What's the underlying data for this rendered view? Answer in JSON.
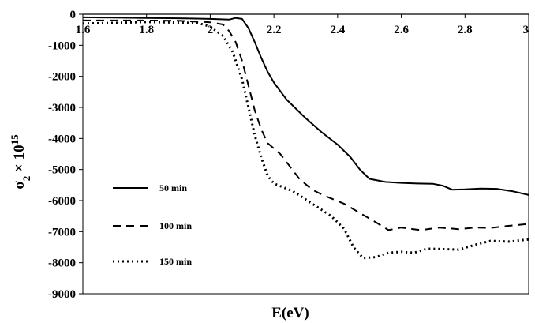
{
  "chart_data": {
    "type": "line",
    "xlabel": "E(eV)",
    "ylabel": {
      "base": "σ",
      "sub": "2",
      "times": " × 10",
      "sup": "15"
    },
    "xlim": [
      1.6,
      3.0
    ],
    "ylim": [
      -9000,
      0
    ],
    "x_ticks": [
      "1.6",
      "1.8",
      "2",
      "2.2",
      "2.4",
      "2.6",
      "2.8",
      "3"
    ],
    "y_ticks": [
      "0",
      "-1000",
      "-2000",
      "-3000",
      "-4000",
      "-5000",
      "-6000",
      "-7000",
      "-8000",
      "-9000"
    ],
    "grid": false,
    "legend_position": "lower-left",
    "series": [
      {
        "name": "50 min",
        "style": "solid",
        "points": [
          [
            1.6,
            -100
          ],
          [
            1.7,
            -110
          ],
          [
            1.8,
            -120
          ],
          [
            1.9,
            -130
          ],
          [
            2.0,
            -150
          ],
          [
            2.06,
            -170
          ],
          [
            2.08,
            -120
          ],
          [
            2.1,
            -150
          ],
          [
            2.12,
            -450
          ],
          [
            2.14,
            -900
          ],
          [
            2.16,
            -1400
          ],
          [
            2.18,
            -1850
          ],
          [
            2.2,
            -2200
          ],
          [
            2.24,
            -2750
          ],
          [
            2.3,
            -3350
          ],
          [
            2.35,
            -3800
          ],
          [
            2.4,
            -4200
          ],
          [
            2.44,
            -4600
          ],
          [
            2.47,
            -5000
          ],
          [
            2.5,
            -5300
          ],
          [
            2.55,
            -5400
          ],
          [
            2.6,
            -5430
          ],
          [
            2.65,
            -5450
          ],
          [
            2.7,
            -5460
          ],
          [
            2.73,
            -5520
          ],
          [
            2.76,
            -5650
          ],
          [
            2.8,
            -5640
          ],
          [
            2.85,
            -5610
          ],
          [
            2.9,
            -5620
          ],
          [
            2.95,
            -5700
          ],
          [
            3.0,
            -5820
          ]
        ]
      },
      {
        "name": "100 min",
        "style": "dashed",
        "points": [
          [
            1.6,
            -200
          ],
          [
            1.7,
            -200
          ],
          [
            1.8,
            -200
          ],
          [
            1.9,
            -210
          ],
          [
            2.0,
            -260
          ],
          [
            2.04,
            -330
          ],
          [
            2.06,
            -550
          ],
          [
            2.08,
            -900
          ],
          [
            2.1,
            -1500
          ],
          [
            2.12,
            -2300
          ],
          [
            2.14,
            -3100
          ],
          [
            2.16,
            -3700
          ],
          [
            2.18,
            -4150
          ],
          [
            2.22,
            -4500
          ],
          [
            2.25,
            -4900
          ],
          [
            2.28,
            -5300
          ],
          [
            2.32,
            -5650
          ],
          [
            2.36,
            -5850
          ],
          [
            2.42,
            -6100
          ],
          [
            2.47,
            -6400
          ],
          [
            2.52,
            -6700
          ],
          [
            2.56,
            -6950
          ],
          [
            2.6,
            -6870
          ],
          [
            2.66,
            -6950
          ],
          [
            2.72,
            -6870
          ],
          [
            2.78,
            -6920
          ],
          [
            2.83,
            -6870
          ],
          [
            2.88,
            -6880
          ],
          [
            2.93,
            -6820
          ],
          [
            3.0,
            -6750
          ]
        ]
      },
      {
        "name": "150 min",
        "style": "dotted",
        "points": [
          [
            1.6,
            -300
          ],
          [
            1.7,
            -280
          ],
          [
            1.8,
            -250
          ],
          [
            1.9,
            -270
          ],
          [
            1.96,
            -280
          ],
          [
            2.0,
            -400
          ],
          [
            2.04,
            -700
          ],
          [
            2.07,
            -1200
          ],
          [
            2.1,
            -2100
          ],
          [
            2.12,
            -3000
          ],
          [
            2.14,
            -3900
          ],
          [
            2.16,
            -4600
          ],
          [
            2.18,
            -5200
          ],
          [
            2.2,
            -5450
          ],
          [
            2.26,
            -5700
          ],
          [
            2.32,
            -6100
          ],
          [
            2.38,
            -6500
          ],
          [
            2.42,
            -6900
          ],
          [
            2.45,
            -7500
          ],
          [
            2.48,
            -7850
          ],
          [
            2.52,
            -7820
          ],
          [
            2.56,
            -7680
          ],
          [
            2.6,
            -7650
          ],
          [
            2.64,
            -7680
          ],
          [
            2.68,
            -7550
          ],
          [
            2.73,
            -7560
          ],
          [
            2.78,
            -7580
          ],
          [
            2.84,
            -7400
          ],
          [
            2.88,
            -7300
          ],
          [
            2.94,
            -7320
          ],
          [
            3.0,
            -7250
          ]
        ]
      }
    ]
  }
}
